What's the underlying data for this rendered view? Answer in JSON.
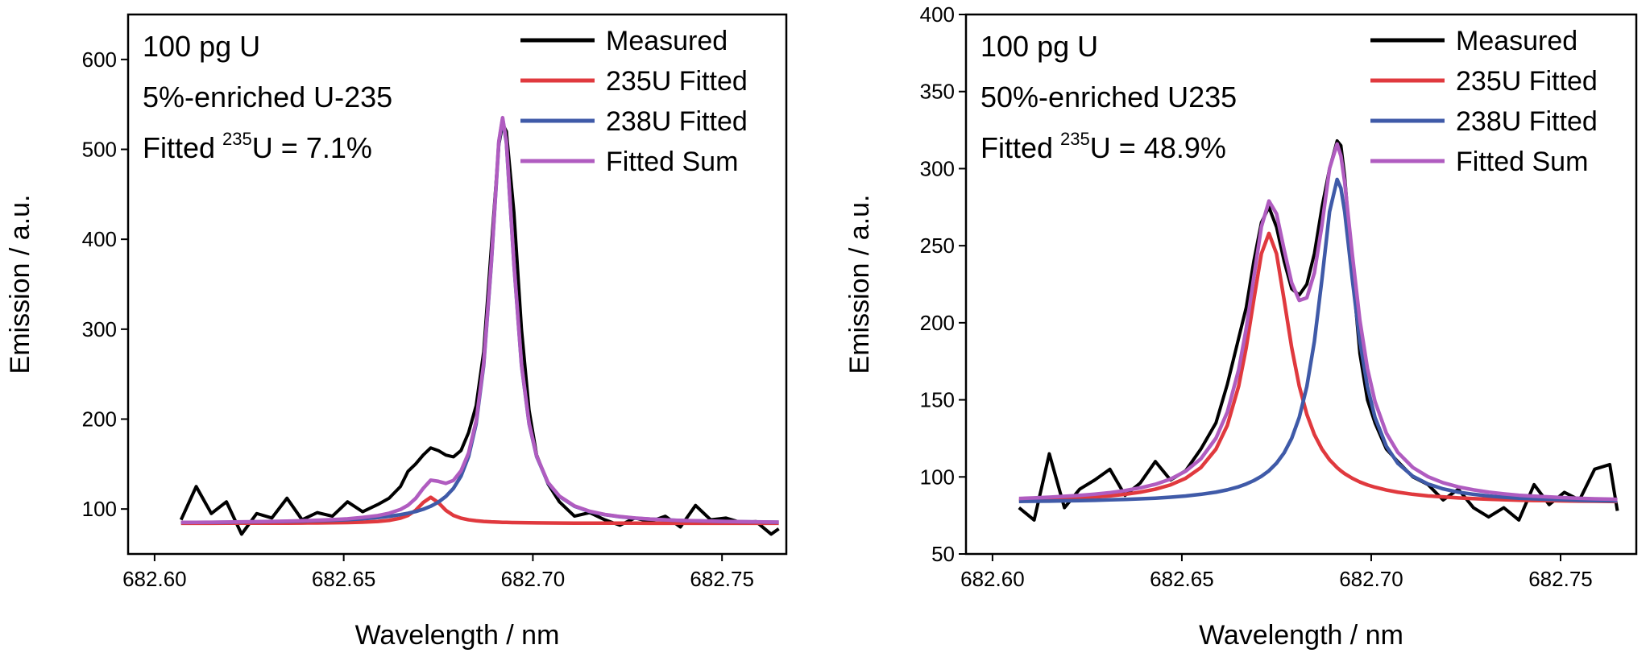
{
  "chart_data": [
    {
      "type": "line",
      "xlabel": "Wavelength / nm",
      "ylabel": "Emission / a.u.",
      "annotations": [
        "100 pg U",
        "5%-enriched U-235",
        [
          "Fitted",
          "235",
          "U = 7.1%"
        ]
      ],
      "legend": "upper right",
      "xlim": [
        682.593,
        682.767
      ],
      "ylim": [
        50,
        650
      ],
      "xticks": [
        {
          "value": 682.6,
          "label": "682.60"
        },
        682.65,
        {
          "value": 682.7,
          "label": "682.70"
        },
        682.75
      ],
      "yticks": [
        100,
        200,
        300,
        400,
        500,
        600
      ],
      "x": [
        682.607,
        682.611,
        682.615,
        682.619,
        682.623,
        682.627,
        682.631,
        682.635,
        682.639,
        682.643,
        682.647,
        682.651,
        682.655,
        682.659,
        682.662,
        682.665,
        682.667,
        682.669,
        682.671,
        682.673,
        682.675,
        682.677,
        682.679,
        682.681,
        682.683,
        682.685,
        682.687,
        682.689,
        682.691,
        682.692,
        682.693,
        682.695,
        682.697,
        682.699,
        682.701,
        682.704,
        682.707,
        682.711,
        682.715,
        682.719,
        682.723,
        682.727,
        682.731,
        682.735,
        682.739,
        682.743,
        682.747,
        682.751,
        682.755,
        682.759,
        682.763,
        682.765
      ],
      "series": [
        {
          "name": "Measured",
          "color": "#000000",
          "values": [
            88,
            125,
            95,
            108,
            72,
            95,
            90,
            112,
            88,
            96,
            92,
            108,
            97,
            105,
            112,
            125,
            142,
            150,
            160,
            168,
            165,
            160,
            158,
            165,
            185,
            215,
            275,
            390,
            505,
            528,
            520,
            430,
            300,
            210,
            160,
            128,
            108,
            92,
            96,
            88,
            82,
            90,
            86,
            92,
            80,
            104,
            88,
            90,
            85,
            86,
            72,
            78
          ]
        },
        {
          "name": "235U Fitted",
          "color": "#e0393e",
          "values": [
            84.1,
            84.1,
            84.1,
            84.2,
            84.2,
            84.2,
            84.3,
            84.3,
            84.4,
            84.5,
            84.7,
            84.9,
            85.4,
            86.2,
            87.4,
            89.8,
            92.9,
            98.5,
            107.2,
            113,
            107.2,
            98.5,
            92.9,
            89.8,
            88,
            86.9,
            86.2,
            85.7,
            85.4,
            85.2,
            85.1,
            84.9,
            84.8,
            84.7,
            84.6,
            84.5,
            84.4,
            84.3,
            84.3,
            84.2,
            84.2,
            84.2,
            84.1,
            84.1,
            84.1,
            84.1,
            84.1,
            84.1,
            84.1,
            84.1,
            84.1,
            84.1
          ]
        },
        {
          "name": "238U Fitted",
          "color": "#3f5aa8",
          "values": [
            85,
            85.1,
            85.2,
            85.3,
            85.5,
            85.7,
            85.9,
            86.2,
            86.5,
            87,
            87.5,
            88.2,
            89.2,
            90.5,
            91.9,
            93.7,
            95.3,
            97.2,
            99.7,
            103.1,
            107.6,
            114,
            122.9,
            136.6,
            158.3,
            194.8,
            259.8,
            372,
            507.5,
            534,
            507.5,
            372,
            259.8,
            194.8,
            158.3,
            129,
            114,
            103.1,
            97.2,
            93.7,
            91.4,
            89.8,
            88.7,
            87.9,
            87.2,
            86.8,
            86.4,
            86.1,
            85.8,
            85.6,
            85.4,
            85.3
          ]
        },
        {
          "name": "Fitted Sum",
          "color": "#b05cc0",
          "values": [
            85.1,
            85.2,
            85.3,
            85.5,
            85.7,
            85.9,
            86.2,
            86.5,
            86.9,
            87.5,
            88.2,
            89.1,
            90.6,
            92.7,
            95.3,
            99.5,
            104.2,
            111.7,
            122.9,
            132.1,
            130.8,
            128.5,
            131.8,
            142.4,
            162.3,
            197.7,
            262,
            373.7,
            508.9,
            535.2,
            508.6,
            372.9,
            260.6,
            195.5,
            158.9,
            129.5,
            114.4,
            103.4,
            97.5,
            93.9,
            91.6,
            90,
            88.8,
            88,
            87.3,
            86.9,
            86.5,
            86.2,
            85.9,
            85.7,
            85.5,
            85.4
          ]
        }
      ]
    },
    {
      "type": "line",
      "xlabel": "Wavelength / nm",
      "ylabel": "Emission / a.u.",
      "annotations": [
        "100 pg U",
        "50%-enriched U235",
        [
          "Fitted",
          "235",
          "U = 48.9%"
        ]
      ],
      "legend": "upper right",
      "xlim": [
        682.593,
        682.77
      ],
      "ylim": [
        50,
        400
      ],
      "xticks": [
        {
          "value": 682.6,
          "label": "682.60"
        },
        682.65,
        {
          "value": 682.7,
          "label": "682.70"
        },
        682.75
      ],
      "yticks": [
        50,
        100,
        150,
        200,
        250,
        300,
        350,
        400
      ],
      "x": [
        682.607,
        682.611,
        682.615,
        682.619,
        682.623,
        682.627,
        682.631,
        682.635,
        682.639,
        682.643,
        682.647,
        682.651,
        682.655,
        682.659,
        682.662,
        682.665,
        682.667,
        682.669,
        682.671,
        682.673,
        682.675,
        682.677,
        682.679,
        682.681,
        682.683,
        682.685,
        682.687,
        682.689,
        682.691,
        682.692,
        682.693,
        682.695,
        682.697,
        682.699,
        682.701,
        682.704,
        682.707,
        682.711,
        682.715,
        682.719,
        682.723,
        682.727,
        682.731,
        682.735,
        682.739,
        682.743,
        682.747,
        682.751,
        682.755,
        682.759,
        682.763,
        682.765
      ],
      "series": [
        {
          "name": "Measured",
          "color": "#000000",
          "values": [
            80,
            72,
            115,
            80,
            92,
            98,
            105,
            88,
            96,
            110,
            98,
            104,
            118,
            135,
            160,
            190,
            210,
            240,
            265,
            275,
            262,
            240,
            222,
            218,
            225,
            245,
            275,
            300,
            318,
            315,
            295,
            235,
            180,
            150,
            135,
            118,
            110,
            100,
            95,
            85,
            92,
            80,
            74,
            80,
            72,
            95,
            82,
            90,
            85,
            105,
            108,
            78
          ]
        },
        {
          "name": "235U Fitted",
          "color": "#e0393e",
          "values": [
            84.9,
            85.2,
            85.5,
            85.9,
            86.4,
            87,
            87.7,
            88.7,
            90.1,
            92,
            94.8,
            99.1,
            106,
            118,
            133.4,
            158.9,
            183.9,
            214.9,
            244.8,
            258,
            244.8,
            214.9,
            183.9,
            158.9,
            140.6,
            127.4,
            118,
            111.1,
            106,
            103.9,
            102.1,
            99.1,
            96.7,
            94.8,
            93.3,
            91.5,
            90.1,
            88.7,
            87.7,
            87,
            86.4,
            85.9,
            85.5,
            85.2,
            84.9,
            84.7,
            84.6,
            84.4,
            84.3,
            84.2,
            84.1,
            84
          ]
        },
        {
          "name": "238U Fitted",
          "color": "#3f5aa8",
          "values": [
            84.1,
            84.2,
            84.3,
            84.5,
            84.6,
            84.8,
            85.1,
            85.4,
            85.8,
            86.2,
            86.8,
            87.6,
            88.7,
            90.1,
            91.6,
            93.6,
            95.4,
            97.6,
            100.4,
            104,
            108.9,
            115.6,
            125,
            138.6,
            158.6,
            188,
            228.4,
            272,
            293,
            287.3,
            272,
            228.4,
            188,
            158.6,
            138.6,
            119.9,
            108.9,
            100.4,
            95.4,
            92.2,
            90.1,
            88.7,
            87.6,
            86.8,
            86.2,
            85.8,
            85.4,
            85.1,
            84.8,
            84.6,
            84.5,
            84.4
          ]
        },
        {
          "name": "Fitted Sum",
          "color": "#b05cc0",
          "values": [
            86,
            86.4,
            86.8,
            87.4,
            88,
            88.8,
            89.8,
            91.1,
            92.9,
            95.2,
            98.6,
            103.7,
            111.7,
            125.1,
            142,
            169.5,
            196.3,
            229.5,
            262.2,
            279,
            270.7,
            247.5,
            225.9,
            214.5,
            216.2,
            232.4,
            263.4,
            300.1,
            316,
            308.2,
            291.1,
            244.5,
            201.7,
            170.4,
            148.9,
            128.4,
            116,
            106.1,
            100.1,
            96.2,
            93.5,
            91.6,
            90.1,
            89,
            88.1,
            87.5,
            87,
            86.5,
            86.1,
            85.8,
            85.6,
            85.4
          ]
        }
      ]
    }
  ]
}
